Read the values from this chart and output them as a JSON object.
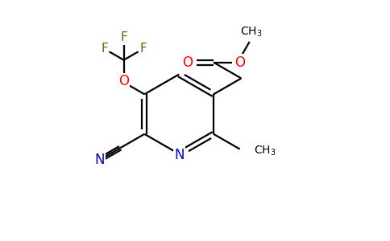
{
  "bg_color": "#ffffff",
  "atom_colors": {
    "C": "#000000",
    "N": "#0000cd",
    "O": "#ff0000",
    "F": "#3a7d00"
  },
  "figsize": [
    4.84,
    3.0
  ],
  "dpi": 100,
  "lw": 1.6,
  "fs": 11
}
